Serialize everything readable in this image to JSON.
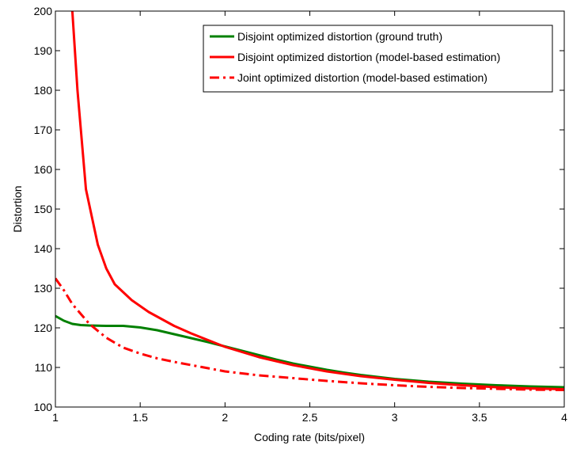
{
  "chart_data": {
    "type": "line",
    "title": "",
    "xlabel": "Coding rate (bits/pixel)",
    "ylabel": "Distortion",
    "xlim": [
      1,
      4
    ],
    "ylim": [
      100,
      200
    ],
    "xticks": [
      1,
      1.5,
      2,
      2.5,
      3,
      3.5,
      4
    ],
    "xtick_labels": [
      "1",
      "1.5",
      "2",
      "2.5",
      "3",
      "3.5",
      "4"
    ],
    "yticks": [
      100,
      110,
      120,
      130,
      140,
      150,
      160,
      170,
      180,
      190,
      200
    ],
    "ytick_labels": [
      "100",
      "110",
      "120",
      "130",
      "140",
      "150",
      "160",
      "170",
      "180",
      "190",
      "200"
    ],
    "grid": false,
    "legend_position": "top-right",
    "series": [
      {
        "name": "Disjoint optimized distortion (ground truth)",
        "color": "#008000",
        "style": "solid",
        "x": [
          1.0,
          1.05,
          1.1,
          1.15,
          1.2,
          1.3,
          1.4,
          1.5,
          1.6,
          1.7,
          1.8,
          1.9,
          2.0,
          2.1,
          2.2,
          2.3,
          2.4,
          2.5,
          2.6,
          2.7,
          2.8,
          2.9,
          3.0,
          3.2,
          3.4,
          3.6,
          3.8,
          4.0
        ],
        "y": [
          123.0,
          121.8,
          121.0,
          120.7,
          120.6,
          120.5,
          120.5,
          120.1,
          119.4,
          118.4,
          117.4,
          116.4,
          115.3,
          114.2,
          113.1,
          112.0,
          111.0,
          110.2,
          109.4,
          108.7,
          108.1,
          107.6,
          107.1,
          106.4,
          105.9,
          105.5,
          105.2,
          105.0
        ]
      },
      {
        "name": "Disjoint optimized distortion (model-based estimation)",
        "color": "#ff0000",
        "style": "solid",
        "x": [
          1.1,
          1.13,
          1.18,
          1.25,
          1.3,
          1.35,
          1.45,
          1.55,
          1.7,
          1.8,
          1.9,
          2.0,
          2.2,
          2.4,
          2.6,
          2.8,
          3.0,
          3.2,
          3.4,
          3.6,
          3.8,
          4.0
        ],
        "y": [
          200.0,
          180.0,
          155.0,
          141.0,
          135.0,
          131.0,
          127.0,
          124.0,
          120.5,
          118.6,
          116.9,
          115.2,
          112.6,
          110.6,
          109.0,
          107.8,
          106.9,
          106.1,
          105.5,
          105.0,
          104.7,
          104.5
        ]
      },
      {
        "name": "Joint optimized distortion (model-based estimation)",
        "color": "#ff0000",
        "style": "dashdot",
        "x": [
          1.0,
          1.05,
          1.1,
          1.2,
          1.3,
          1.4,
          1.5,
          1.6,
          1.7,
          1.8,
          2.0,
          2.2,
          2.4,
          2.6,
          2.8,
          3.0,
          3.2,
          3.4,
          3.6,
          3.8,
          4.0
        ],
        "y": [
          132.5,
          129.5,
          126.0,
          121.0,
          117.5,
          115.0,
          113.5,
          112.3,
          111.4,
          110.6,
          109.0,
          108.0,
          107.3,
          106.6,
          106.0,
          105.5,
          105.1,
          104.8,
          104.6,
          104.4,
          104.3
        ]
      }
    ]
  }
}
